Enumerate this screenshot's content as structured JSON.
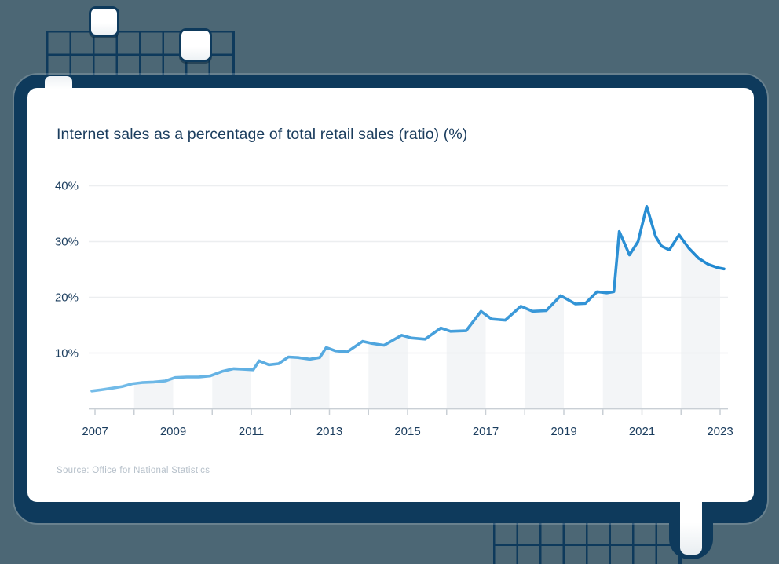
{
  "chart_data": {
    "type": "line",
    "title": "Internet sales as a percentage of total retail sales (ratio) (%)",
    "source": "Source: Office for National Statistics",
    "xlabel": "",
    "ylabel": "",
    "xlim": [
      2006.9,
      2023.2
    ],
    "ylim": [
      0,
      42
    ],
    "grid": "horizontal",
    "legend": "none",
    "y_ticks": [
      {
        "value": 10,
        "label": "10%"
      },
      {
        "value": 20,
        "label": "20%"
      },
      {
        "value": 30,
        "label": "30%"
      },
      {
        "value": 40,
        "label": "40%"
      }
    ],
    "x_ticks": [
      {
        "year": 2007,
        "label": "2007"
      },
      {
        "year": 2009,
        "label": "2009"
      },
      {
        "year": 2011,
        "label": "2011"
      },
      {
        "year": 2013,
        "label": "2013"
      },
      {
        "year": 2015,
        "label": "2015"
      },
      {
        "year": 2017,
        "label": "2017"
      },
      {
        "year": 2019,
        "label": "2019"
      },
      {
        "year": 2021,
        "label": "2021"
      },
      {
        "year": 2023,
        "label": "2023"
      }
    ],
    "x_minor_ticks": [
      2007,
      2008,
      2009,
      2010,
      2011,
      2012,
      2013,
      2014,
      2015,
      2016,
      2017,
      2018,
      2019,
      2020,
      2021,
      2022,
      2023
    ],
    "shaded_years": [
      2008,
      2010,
      2012,
      2014,
      2016,
      2018,
      2020,
      2022
    ],
    "series": [
      {
        "name": "Internet sales as a percentage of total retail sales (ratio)",
        "points": [
          [
            2006.92,
            3.2
          ],
          [
            2007.15,
            3.4
          ],
          [
            2007.45,
            3.7
          ],
          [
            2007.7,
            4.0
          ],
          [
            2007.95,
            4.5
          ],
          [
            2008.2,
            4.7
          ],
          [
            2008.5,
            4.8
          ],
          [
            2008.8,
            5.0
          ],
          [
            2009.05,
            5.6
          ],
          [
            2009.35,
            5.7
          ],
          [
            2009.65,
            5.7
          ],
          [
            2009.95,
            5.9
          ],
          [
            2010.25,
            6.7
          ],
          [
            2010.55,
            7.2
          ],
          [
            2010.8,
            7.1
          ],
          [
            2011.05,
            7.0
          ],
          [
            2011.2,
            8.6
          ],
          [
            2011.45,
            7.9
          ],
          [
            2011.7,
            8.1
          ],
          [
            2011.95,
            9.3
          ],
          [
            2012.2,
            9.2
          ],
          [
            2012.5,
            8.9
          ],
          [
            2012.75,
            9.2
          ],
          [
            2012.92,
            11.0
          ],
          [
            2013.15,
            10.4
          ],
          [
            2013.45,
            10.2
          ],
          [
            2013.85,
            12.1
          ],
          [
            2014.1,
            11.7
          ],
          [
            2014.4,
            11.4
          ],
          [
            2014.85,
            13.2
          ],
          [
            2015.1,
            12.7
          ],
          [
            2015.45,
            12.5
          ],
          [
            2015.85,
            14.5
          ],
          [
            2016.1,
            13.9
          ],
          [
            2016.5,
            14.0
          ],
          [
            2016.88,
            17.5
          ],
          [
            2017.15,
            16.1
          ],
          [
            2017.5,
            15.9
          ],
          [
            2017.9,
            18.4
          ],
          [
            2018.2,
            17.5
          ],
          [
            2018.55,
            17.6
          ],
          [
            2018.92,
            20.3
          ],
          [
            2019.3,
            18.8
          ],
          [
            2019.55,
            18.9
          ],
          [
            2019.85,
            21.0
          ],
          [
            2020.1,
            20.8
          ],
          [
            2020.28,
            21.0
          ],
          [
            2020.42,
            31.8
          ],
          [
            2020.68,
            27.6
          ],
          [
            2020.9,
            30.0
          ],
          [
            2021.12,
            36.3
          ],
          [
            2021.35,
            30.9
          ],
          [
            2021.5,
            29.2
          ],
          [
            2021.7,
            28.5
          ],
          [
            2021.95,
            31.2
          ],
          [
            2022.2,
            28.8
          ],
          [
            2022.45,
            27.0
          ],
          [
            2022.7,
            25.9
          ],
          [
            2022.95,
            25.3
          ],
          [
            2023.1,
            25.1
          ]
        ]
      }
    ],
    "colors": {
      "background": "#4C6775",
      "frame": "#0E3A5C",
      "card": "#FFFFFF",
      "line_gradient_start": "#76BDE9",
      "line_gradient_end": "#1E87D0",
      "band_fill": "#F3F5F7",
      "gridline": "#ECEEF0",
      "axis": "#C9CFD5",
      "text_primary": "#1B3D5E",
      "text_muted": "#B6C0CA"
    }
  }
}
